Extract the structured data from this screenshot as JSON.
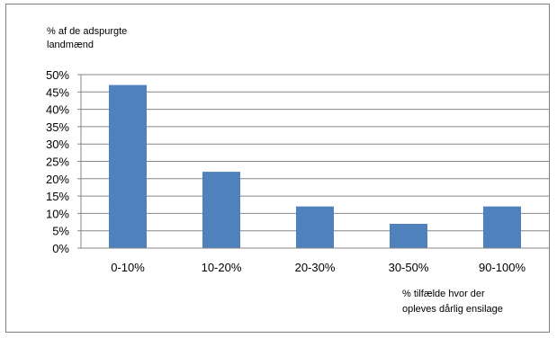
{
  "chart_data": {
    "type": "bar",
    "ylabel": [
      "% af de adspurgte",
      "landmænd"
    ],
    "xlabel": [
      "% tilfælde hvor der",
      "opleves dårlig ensilage"
    ],
    "categories": [
      "0-10%",
      "10-20%",
      "20-30%",
      "30-50%",
      "90-100%"
    ],
    "values": [
      47,
      22,
      12,
      7,
      12
    ],
    "ylim": [
      0,
      50
    ],
    "yticks": [
      "0%",
      "5%",
      "10%",
      "15%",
      "20%",
      "25%",
      "30%",
      "35%",
      "40%",
      "45%",
      "50%"
    ],
    "grid": true,
    "legend": "none",
    "bar_color": "#4f81bd",
    "grid_color": "#868686"
  }
}
